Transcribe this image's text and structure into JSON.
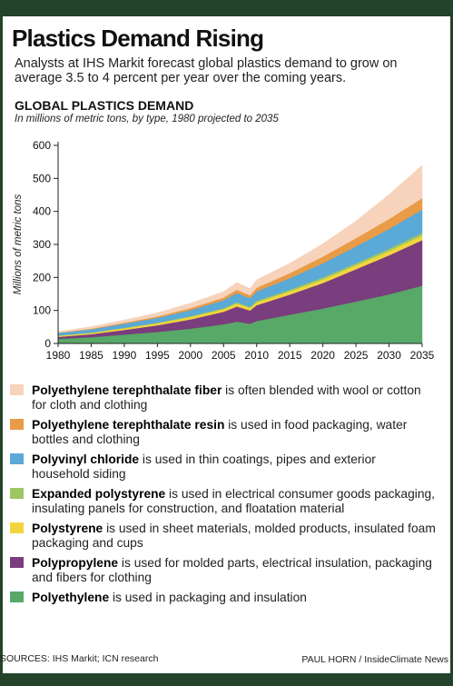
{
  "header": {
    "title": "Plastics Demand Rising",
    "subtitle": "Analysts at IHS Markit forecast global plastics demand to grow on average 3.5 to 4 percent per year over the coming years.",
    "chart_title": "GLOBAL PLASTICS DEMAND",
    "chart_subtitle": "In millions of metric tons, by type, 1980 projected to 2035"
  },
  "chart_data": {
    "type": "area",
    "stacked": true,
    "title": "GLOBAL PLASTICS DEMAND",
    "subtitle": "In millions of metric tons, by type, 1980 projected to 2035",
    "ylabel": "Millions of metric tons",
    "xlabel": "",
    "ylim": [
      0,
      600
    ],
    "yticks": [
      0,
      100,
      200,
      300,
      400,
      500,
      600
    ],
    "xticks": [
      1980,
      1985,
      1990,
      1995,
      2000,
      2005,
      2010,
      2015,
      2020,
      2025,
      2030,
      2035
    ],
    "x": [
      1980,
      1985,
      1990,
      1995,
      2000,
      2005,
      2007,
      2009,
      2010,
      2015,
      2020,
      2025,
      2030,
      2035
    ],
    "series": [
      {
        "name": "Polyethylene",
        "color": "#58a968",
        "values": [
          14,
          19,
          27,
          35,
          45,
          58,
          66,
          60,
          68,
          87,
          106,
          127,
          149,
          175
        ]
      },
      {
        "name": "Polypropylene",
        "color": "#7a3d7d",
        "values": [
          6,
          9,
          14,
          20,
          28,
          38,
          46,
          40,
          48,
          61,
          77,
          98,
          118,
          138
        ]
      },
      {
        "name": "Polystyrene",
        "color": "#f2d53e",
        "values": [
          3,
          4,
          5,
          6,
          7,
          8,
          9,
          8,
          9,
          10,
          11,
          12,
          13,
          14
        ]
      },
      {
        "name": "Expanded polystyrene",
        "color": "#9cc763",
        "values": [
          1,
          1,
          2,
          2,
          3,
          3,
          4,
          3,
          4,
          5,
          6,
          6,
          7,
          8
        ]
      },
      {
        "name": "Polyvinyl chloride",
        "color": "#5aa9d6",
        "values": [
          8,
          10,
          12,
          15,
          18,
          24,
          28,
          26,
          29,
          35,
          43,
          51,
          60,
          70
        ]
      },
      {
        "name": "Polyethylene terephthalate resin",
        "color": "#e99b47",
        "values": [
          1,
          2,
          3,
          4,
          6,
          8,
          10,
          9,
          11,
          15,
          20,
          25,
          30,
          35
        ]
      },
      {
        "name": "Polyethylene terephthalate fiber",
        "color": "#f7d3bc",
        "values": [
          3,
          6,
          8,
          11,
          15,
          18,
          22,
          20,
          24,
          30,
          39,
          52,
          74,
          100
        ]
      }
    ]
  },
  "legend": [
    {
      "name": "Polyethylene terephthalate fiber",
      "desc": " is often blended with wool or cotton for cloth and clothing",
      "color": "#f7d3bc"
    },
    {
      "name": "Polyethylene terephthalate resin",
      "desc": " is used in food packaging, water bottles and clothing",
      "color": "#e99b47"
    },
    {
      "name": "Polyvinyl chloride",
      "desc": " is used in thin coatings, pipes and exterior household siding",
      "color": "#5aa9d6"
    },
    {
      "name": "Expanded polystyrene",
      "desc": " is used in electrical consumer goods packaging, insulating panels for construction, and floatation material",
      "color": "#9cc763"
    },
    {
      "name": "Polystyrene",
      "desc": " is used in sheet materials, molded products, insulated foam packaging and cups",
      "color": "#f2d53e"
    },
    {
      "name": "Polypropylene",
      "desc": " is used for molded parts, electrical insulation, packaging and fibers for clothing",
      "color": "#7a3d7d"
    },
    {
      "name": "Polyethylene",
      "desc": " is used in packaging and insulation",
      "color": "#58a968"
    }
  ],
  "footer": {
    "sources": "SOURCES: IHS Markit; ICN research",
    "credit": "PAUL HORN / InsideClimate News"
  }
}
